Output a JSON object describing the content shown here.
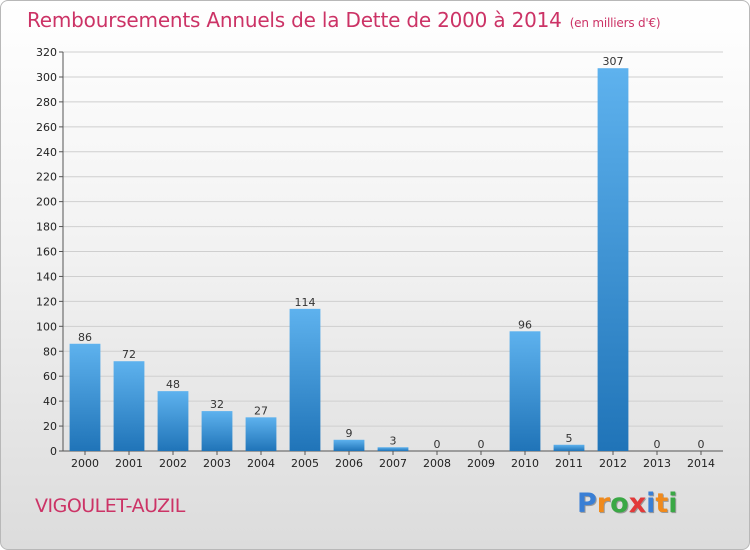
{
  "title": "Remboursements Annuels de la Dette de 2000 à 2014",
  "subtitle": "(en milliers d'€)",
  "city": "VIGOULET-AUZIL",
  "logo": {
    "letters": [
      "P",
      "r",
      "o",
      "x",
      "i",
      "t",
      "i"
    ],
    "colors": [
      "#3a7fd5",
      "#f08a1c",
      "#3aa845",
      "#e23a3a",
      "#3a7fd5",
      "#f08a1c",
      "#3aa845"
    ]
  },
  "colors": {
    "title": "#cc3366",
    "bar_light": "#5eb2ee",
    "bar_dark": "#2074b8"
  },
  "chart_data": {
    "type": "bar",
    "title": "Remboursements Annuels de la Dette de 2000 à 2014",
    "subtitle": "(en milliers d'€)",
    "xlabel": "",
    "ylabel": "",
    "categories": [
      "2000",
      "2001",
      "2002",
      "2003",
      "2004",
      "2005",
      "2006",
      "2007",
      "2008",
      "2009",
      "2010",
      "2011",
      "2012",
      "2013",
      "2014"
    ],
    "values": [
      86,
      72,
      48,
      32,
      27,
      114,
      9,
      3,
      0,
      0,
      96,
      5,
      307,
      0,
      0
    ],
    "ylim": [
      0,
      320
    ],
    "yticks": [
      0,
      20,
      40,
      60,
      80,
      100,
      120,
      140,
      160,
      180,
      200,
      220,
      240,
      260,
      280,
      300,
      320
    ],
    "grid": true,
    "legend": "none"
  }
}
